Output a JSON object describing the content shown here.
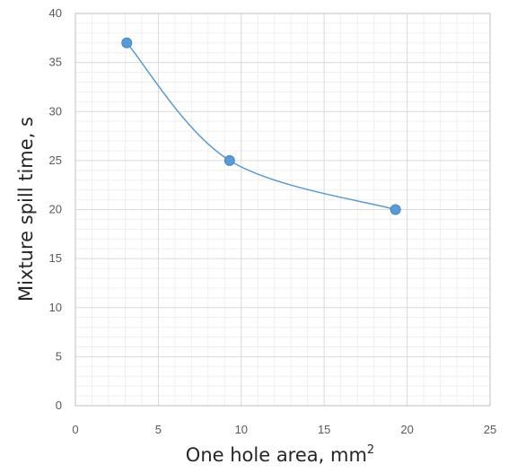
{
  "chart_data": {
    "type": "scatter",
    "title": "",
    "xlabel": "One hole area, mm",
    "xlabel_superscript": "2",
    "ylabel": "Mixture spill time, s",
    "xlim": [
      0,
      25
    ],
    "ylim": [
      0,
      40
    ],
    "x_ticks": [
      "0",
      "5",
      "10",
      "15",
      "20",
      "25"
    ],
    "y_ticks": [
      "0",
      "5",
      "10",
      "15",
      "20",
      "25",
      "30",
      "35",
      "40"
    ],
    "grid": true,
    "minor_grid": true,
    "legend": "none",
    "smooth_line": true,
    "series": [
      {
        "x": [
          3.1,
          9.3,
          19.3
        ],
        "y": [
          37,
          25,
          20
        ],
        "color": "#5b9bd5"
      }
    ]
  }
}
